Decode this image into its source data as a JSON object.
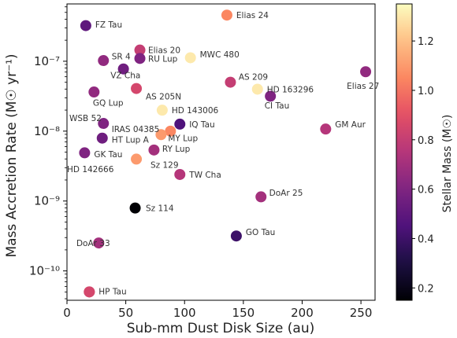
{
  "chart_data": {
    "type": "scatter",
    "xlabel": "Sub-mm Dust Disk Size (au)",
    "ylabel": "Mass Accretion Rate (M☉ yr⁻¹)",
    "xlim": [
      0,
      262
    ],
    "ylim_log10": [
      -10.42,
      -6.18
    ],
    "y_scale": "log",
    "x_ticks": [
      0,
      50,
      100,
      150,
      200,
      250
    ],
    "x_tick_labels": [
      "0",
      "50",
      "100",
      "150",
      "200",
      "250"
    ],
    "y_ticks_log10": [
      -10,
      -9,
      -8,
      -7
    ],
    "y_tick_labels": [
      "10⁻¹⁰",
      "10⁻⁹",
      "10⁻⁸",
      "10⁻⁷"
    ],
    "colorbar": {
      "label": "Stellar Mass (M☉)",
      "range": [
        0.15,
        1.35
      ],
      "ticks": [
        0.2,
        0.4,
        0.6,
        0.8,
        1.0,
        1.2
      ],
      "tick_labels": [
        "0.2",
        "0.4",
        "0.6",
        "0.8",
        "1.0",
        "1.2"
      ],
      "colormap": "magma"
    },
    "points": [
      {
        "name": "FZ Tau",
        "x": 16,
        "y_log10": -6.49,
        "mass": 0.5
      },
      {
        "name": "Elias 24",
        "x": 136,
        "y_log10": -6.34,
        "mass": 1.05
      },
      {
        "name": "Elias 20",
        "x": 62,
        "y_log10": -6.84,
        "mass": 0.8
      },
      {
        "name": "SR 4",
        "x": 31,
        "y_log10": -6.99,
        "mass": 0.65
      },
      {
        "name": "RU Lup",
        "x": 62,
        "y_log10": -6.96,
        "mass": 0.6
      },
      {
        "name": "MWC 480",
        "x": 105,
        "y_log10": -6.95,
        "mass": 1.3
      },
      {
        "name": "VZ Cha",
        "x": 48,
        "y_log10": -7.11,
        "mass": 0.55
      },
      {
        "name": "Elias 27",
        "x": 254,
        "y_log10": -7.15,
        "mass": 0.65
      },
      {
        "name": "AS 209",
        "x": 139,
        "y_log10": -7.3,
        "mass": 0.8
      },
      {
        "name": "HD 163296",
        "x": 162,
        "y_log10": -7.4,
        "mass": 1.3
      },
      {
        "name": "AS 205N",
        "x": 59,
        "y_log10": -7.39,
        "mass": 0.85
      },
      {
        "name": "GQ Lup",
        "x": 23,
        "y_log10": -7.44,
        "mass": 0.65
      },
      {
        "name": "CI Tau",
        "x": 173,
        "y_log10": -7.5,
        "mass": 0.6
      },
      {
        "name": "HD 143006",
        "x": 81,
        "y_log10": -7.7,
        "mass": 1.3
      },
      {
        "name": "WSB 52",
        "x": 31,
        "y_log10": -7.89,
        "mass": 0.6
      },
      {
        "name": "IQ Tau",
        "x": 96,
        "y_log10": -7.9,
        "mass": 0.45
      },
      {
        "name": "GM Aur",
        "x": 220,
        "y_log10": -7.97,
        "mass": 0.75
      },
      {
        "name": "IRAS 04385",
        "x": 88,
        "y_log10": -8.0,
        "mass": 1.05
      },
      {
        "name": "MY Lup",
        "x": 80,
        "y_log10": -8.05,
        "mass": 1.1
      },
      {
        "name": "HT Lup A",
        "x": 30,
        "y_log10": -8.1,
        "mass": 0.55
      },
      {
        "name": "RY Lup",
        "x": 74,
        "y_log10": -8.27,
        "mass": 0.7
      },
      {
        "name": "GK Tau",
        "x": 15,
        "y_log10": -8.31,
        "mass": 0.6
      },
      {
        "name": "HD 142666",
        "x": 59,
        "y_log10": -8.4,
        "mass": 1.1
      },
      {
        "name": "Sz 129",
        "x": 96,
        "y_log10": -8.62,
        "mass": 0.75
      },
      {
        "name": "TW Cha",
        "x": 165,
        "y_log10": -8.94,
        "mass": 0.7
      },
      {
        "name": "DoAr 25",
        "x": 58,
        "y_log10": -9.1,
        "mass": 0.15
      },
      {
        "name": "Sz 114",
        "x": 144,
        "y_log10": -9.5,
        "mass": 0.4
      },
      {
        "name": "GO Tau",
        "x": 27,
        "y_log10": -9.6,
        "mass": 0.7
      },
      {
        "name": "DoAr 33",
        "x": 19,
        "y_log10": -10.3,
        "mass": 0.85
      },
      {
        "name": "HP Tau",
        "x": 19,
        "y_log10": -10.3,
        "mass": 0.85
      }
    ],
    "labels": [
      {
        "text": "FZ Tau",
        "x": 24,
        "y_log10": -6.47
      },
      {
        "text": "Elias 24",
        "x": 144,
        "y_log10": -6.34
      },
      {
        "text": "Elias 20",
        "x": 69,
        "y_log10": -6.84
      },
      {
        "text": "SR 4",
        "x": 38,
        "y_log10": -6.93
      },
      {
        "text": "RU Lup",
        "x": 69,
        "y_log10": -6.96
      },
      {
        "text": "MWC 480",
        "x": 113,
        "y_log10": -6.9
      },
      {
        "text": "VZ Cha",
        "x": 37,
        "y_log10": -7.2
      },
      {
        "text": "Elias 27",
        "x": 238,
        "y_log10": -7.35
      },
      {
        "text": "AS 209",
        "x": 146,
        "y_log10": -7.22
      },
      {
        "text": "HD 163296",
        "x": 170,
        "y_log10": -7.4
      },
      {
        "text": "AS 205N",
        "x": 67,
        "y_log10": -7.5
      },
      {
        "text": "GQ Lup",
        "x": 22,
        "y_log10": -7.59
      },
      {
        "text": "CI Tau",
        "x": 168,
        "y_log10": -7.63
      },
      {
        "text": "HD 143006",
        "x": 89,
        "y_log10": -7.7
      },
      {
        "text": "WSB 52",
        "x": 2,
        "y_log10": -7.81
      },
      {
        "text": "IQ Tau",
        "x": 104,
        "y_log10": -7.9
      },
      {
        "text": "GM Aur",
        "x": 228,
        "y_log10": -7.9
      },
      {
        "text": "IRAS 04385",
        "x": 38,
        "y_log10": -7.97
      },
      {
        "text": "MY Lup",
        "x": 86,
        "y_log10": -8.1
      },
      {
        "text": "HT Lup A",
        "x": 38,
        "y_log10": -8.12
      },
      {
        "text": "RY Lup",
        "x": 81,
        "y_log10": -8.25
      },
      {
        "text": "GK Tau",
        "x": 23,
        "y_log10": -8.33
      },
      {
        "text": "HD 142666",
        "x": 0,
        "y_log10": -8.54
      },
      {
        "text": "Sz 129",
        "x": 71,
        "y_log10": -8.48
      },
      {
        "text": "TW Cha",
        "x": 104,
        "y_log10": -8.62
      },
      {
        "text": "DoAr 25",
        "x": 172,
        "y_log10": -8.88
      },
      {
        "text": "Sz 114",
        "x": 67,
        "y_log10": -9.1
      },
      {
        "text": "GO Tau",
        "x": 152,
        "y_log10": -9.44
      },
      {
        "text": "DoAr 33",
        "x": 8,
        "y_log10": -9.6
      },
      {
        "text": "HP Tau",
        "x": 27,
        "y_log10": -10.29
      }
    ]
  }
}
